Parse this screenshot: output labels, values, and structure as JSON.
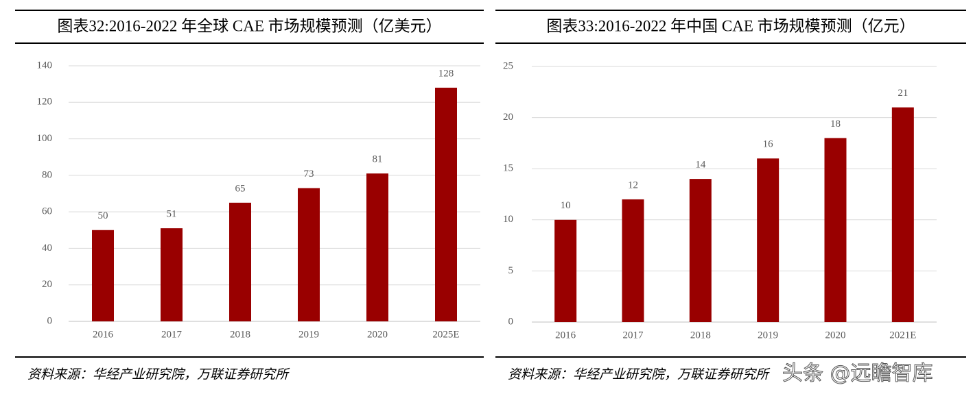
{
  "chart_data": [
    {
      "type": "bar",
      "title": "图表32:2016-2022 年全球 CAE 市场规模预测（亿美元）",
      "categories": [
        "2016",
        "2017",
        "2018",
        "2019",
        "2020",
        "2025E"
      ],
      "values": [
        50,
        51,
        65,
        73,
        81,
        128
      ],
      "color": "#990000",
      "ylim": [
        0,
        140
      ],
      "yticks": [
        0,
        20,
        40,
        60,
        80,
        100,
        120,
        140
      ],
      "grid": true,
      "source": "资料来源：华经产业研究院，万联证券研究所"
    },
    {
      "type": "bar",
      "title": "图表33:2016-2022 年中国 CAE 市场规模预测（亿元）",
      "categories": [
        "2016",
        "2017",
        "2018",
        "2019",
        "2020",
        "2021E"
      ],
      "values": [
        10,
        12,
        14,
        16,
        18,
        21
      ],
      "color": "#990000",
      "ylim": [
        0,
        25
      ],
      "yticks": [
        0,
        5,
        10,
        15,
        20,
        25
      ],
      "grid": true,
      "source": "资料来源：华经产业研究院，万联证券研究所"
    }
  ],
  "watermark": "头条 @远瞻智库"
}
